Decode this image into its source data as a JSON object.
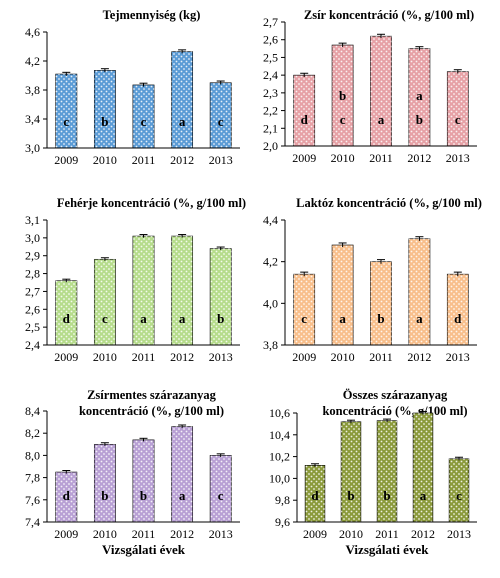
{
  "x_axis_title": "Vizsgálati évek",
  "chart_data": [
    {
      "type": "bar",
      "title_lines": [
        "Tejmennyiség (kg)"
      ],
      "categories": [
        "2009",
        "2010",
        "2011",
        "2012",
        "2013"
      ],
      "values": [
        4.02,
        4.07,
        3.87,
        4.33,
        3.9
      ],
      "error": [
        0.01,
        0.01,
        0.01,
        0.01,
        0.01
      ],
      "letters": [
        [
          "c"
        ],
        [
          "b"
        ],
        [
          "c"
        ],
        [
          "a"
        ],
        [
          "c"
        ]
      ],
      "ylim": [
        3.0,
        4.6
      ],
      "yticks": [
        "3,0",
        "3,4",
        "3,8",
        "4,2",
        "4,6"
      ],
      "color": "#5b9bd5",
      "grid": false,
      "show_xtitle": false
    },
    {
      "type": "bar",
      "title_lines": [
        "Zsír koncentráció (%, g/100 ml)"
      ],
      "categories": [
        "2009",
        "2010",
        "2011",
        "2012",
        "2013"
      ],
      "values": [
        2.4,
        2.57,
        2.62,
        2.55,
        2.42
      ],
      "error": [
        0.005,
        0.005,
        0.005,
        0.005,
        0.005
      ],
      "letters": [
        [
          "d"
        ],
        [
          "b",
          "c"
        ],
        [
          "a"
        ],
        [
          "a",
          "b"
        ],
        [
          "c"
        ]
      ],
      "ylim": [
        2.0,
        2.7
      ],
      "yticks": [
        "2,0",
        "2,1",
        "2,2",
        "2,3",
        "2,4",
        "2,5",
        "2,6",
        "2,7"
      ],
      "color": "#e6a1a6",
      "grid": false,
      "show_xtitle": false
    },
    {
      "type": "bar",
      "title_lines": [
        "Fehérje koncentráció (%, g/100 ml)"
      ],
      "categories": [
        "2009",
        "2010",
        "2011",
        "2012",
        "2013"
      ],
      "values": [
        2.76,
        2.88,
        3.01,
        3.01,
        2.94
      ],
      "error": [
        0.003,
        0.003,
        0.003,
        0.003,
        0.003
      ],
      "letters": [
        [
          "d"
        ],
        [
          "c"
        ],
        [
          "a"
        ],
        [
          "a"
        ],
        [
          "b"
        ]
      ],
      "ylim": [
        2.4,
        3.1
      ],
      "yticks": [
        "2,4",
        "2,5",
        "2,6",
        "2,7",
        "2,8",
        "2,9",
        "3,0",
        "3,1"
      ],
      "color": "#b6dc8c",
      "grid": false,
      "show_xtitle": false
    },
    {
      "type": "bar",
      "title_lines": [
        "Laktóz koncentráció (%, g/100 ml)"
      ],
      "categories": [
        "2009",
        "2010",
        "2011",
        "2012",
        "2013"
      ],
      "values": [
        4.14,
        4.28,
        4.2,
        4.31,
        4.14
      ],
      "error": [
        0.005,
        0.005,
        0.005,
        0.005,
        0.005
      ],
      "letters": [
        [
          "c"
        ],
        [
          "a"
        ],
        [
          "b"
        ],
        [
          "a"
        ],
        [
          "d"
        ]
      ],
      "ylim": [
        3.8,
        4.4
      ],
      "yticks": [
        "3,8",
        "4,0",
        "4,2",
        "4,4"
      ],
      "color": "#f8bf8c",
      "grid": false,
      "show_xtitle": false
    },
    {
      "type": "bar",
      "title_lines": [
        "Zsírmentes szárazanyag",
        "koncentráció  (%, g/100 ml)"
      ],
      "categories": [
        "2009",
        "2010",
        "2011",
        "2012",
        "2013"
      ],
      "values": [
        7.85,
        8.1,
        8.14,
        8.26,
        8.0
      ],
      "error": [
        0.005,
        0.005,
        0.005,
        0.005,
        0.005
      ],
      "letters": [
        [
          "d"
        ],
        [
          "b"
        ],
        [
          "b"
        ],
        [
          "a"
        ],
        [
          "c"
        ]
      ],
      "ylim": [
        7.4,
        8.4
      ],
      "yticks": [
        "7,4",
        "7,6",
        "7,8",
        "8,0",
        "8,2",
        "8,4"
      ],
      "color": "#b8a0d4",
      "grid": false,
      "show_xtitle": true
    },
    {
      "type": "bar",
      "title_lines": [
        "Összes szárazanyag",
        "koncentráció (%, g/100 ml)"
      ],
      "categories": [
        "2009",
        "2010",
        "2011",
        "2012",
        "2013"
      ],
      "values": [
        10.12,
        10.52,
        10.53,
        10.6,
        10.18
      ],
      "error": [
        0.005,
        0.005,
        0.005,
        0.005,
        0.005
      ],
      "letters": [
        [
          "d"
        ],
        [
          "b"
        ],
        [
          "b"
        ],
        [
          "a"
        ],
        [
          "c"
        ]
      ],
      "ylim": [
        9.6,
        10.6
      ],
      "yticks": [
        "9,6",
        "9,8",
        "10,0",
        "10,2",
        "10,4",
        "10,6"
      ],
      "color": "#8b9a3c",
      "grid": false,
      "show_xtitle": true
    }
  ]
}
